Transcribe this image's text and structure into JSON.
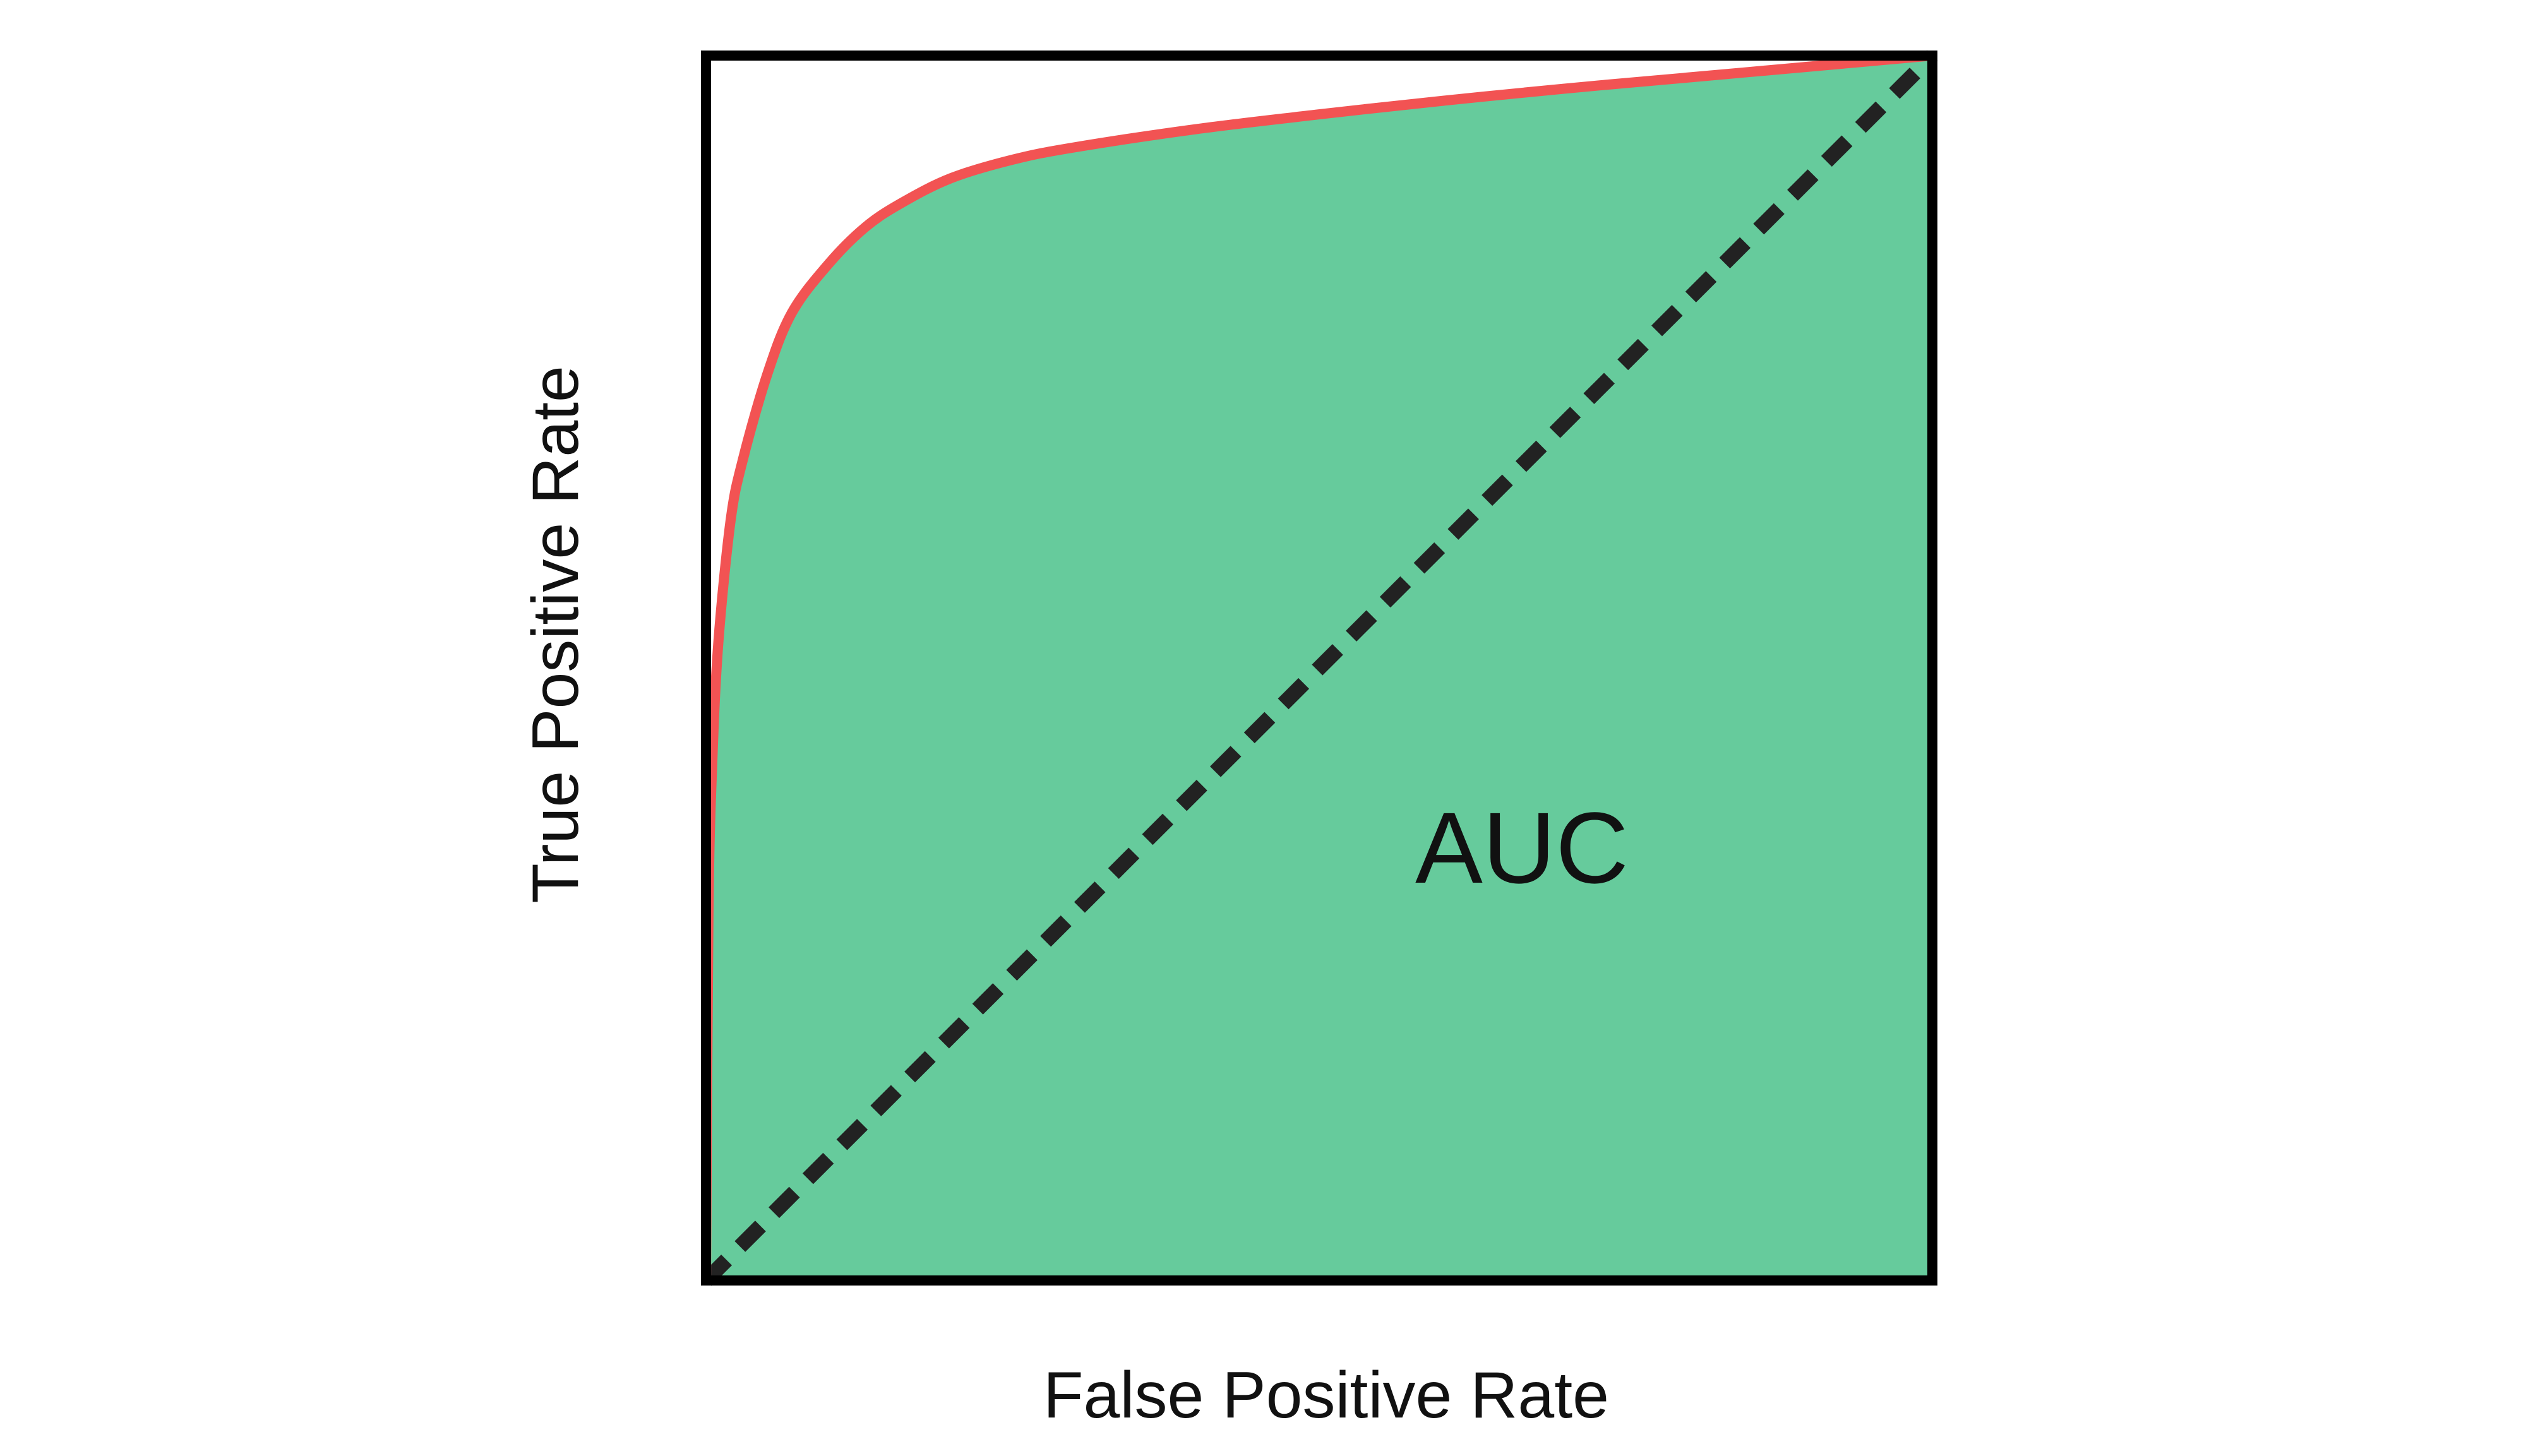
{
  "chart_data": {
    "type": "area",
    "title": "",
    "xlabel": "False Positive Rate",
    "ylabel": "True Positive Rate",
    "xlim": [
      0,
      1
    ],
    "ylim": [
      0,
      1
    ],
    "grid": false,
    "legend": "none",
    "annotation": "AUC",
    "series": [
      {
        "role": "roc-curve",
        "x": [
          0,
          0.002,
          0.005,
          0.01,
          0.02,
          0.03,
          0.05,
          0.07,
          0.1,
          0.13,
          0.16,
          0.2,
          0.25,
          0.3,
          0.4,
          0.5,
          0.6,
          0.7,
          0.8,
          0.9,
          1
        ],
        "y": [
          0,
          0.3,
          0.42,
          0.52,
          0.62,
          0.67,
          0.74,
          0.79,
          0.83,
          0.86,
          0.88,
          0.9,
          0.915,
          0.925,
          0.94,
          0.952,
          0.963,
          0.973,
          0.982,
          0.991,
          1
        ]
      },
      {
        "role": "random-baseline",
        "x": [
          0,
          1
        ],
        "y": [
          0,
          1
        ]
      }
    ],
    "colors": {
      "area": "#66cb9c",
      "roc_curve": "#f25353",
      "baseline": "#222222",
      "frame": "#000000"
    }
  }
}
